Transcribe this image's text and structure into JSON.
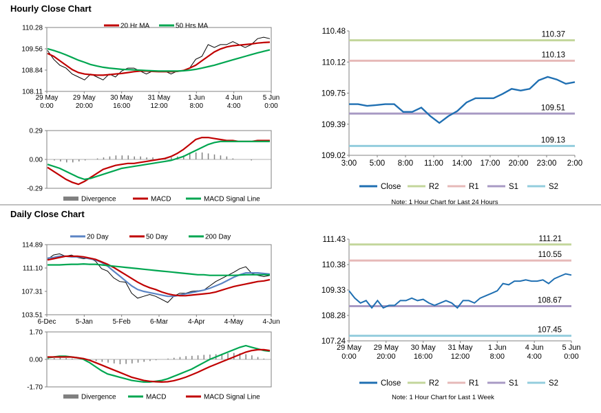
{
  "sections": {
    "hourly_title": "Hourly Close Chart",
    "daily_title": "Daily Close Chart"
  },
  "colors": {
    "price": "#000000",
    "red": "#c00000",
    "green": "#00a650",
    "blue": "#5b84c4",
    "close": "#1f6fb2",
    "R2": "#c3d69b",
    "R1": "#e6b9b8",
    "S1": "#a89ac4",
    "S2": "#93cddd",
    "divergence": "#808080",
    "axis": "#808080"
  },
  "chart_data": [
    {
      "id": "hourly-price",
      "type": "line",
      "legend": [
        "20 Hr MA",
        "50 Hrs MA"
      ],
      "legend_placement": "top",
      "y_ticks": [
        "110.28",
        "109.56",
        "108.84",
        "108.11"
      ],
      "ylim": [
        108.11,
        110.28
      ],
      "x_ticks": [
        [
          "29 May",
          "0:00"
        ],
        [
          "29 May",
          "20:00"
        ],
        [
          "30 May",
          "16:00"
        ],
        [
          "31 May",
          "12:00"
        ],
        [
          "1 Jun",
          "8:00"
        ],
        [
          "4 Jun",
          "4:00"
        ],
        [
          "5 Jun",
          "0:00"
        ]
      ],
      "series": [
        {
          "name": "Price",
          "values": [
            109.5,
            109.2,
            109.0,
            108.9,
            108.7,
            108.6,
            108.5,
            108.7,
            108.6,
            108.5,
            108.7,
            108.6,
            108.8,
            108.9,
            108.9,
            108.8,
            108.7,
            108.8,
            108.8,
            108.8,
            108.7,
            108.8,
            108.8,
            108.9,
            109.2,
            109.3,
            109.7,
            109.6,
            109.7,
            109.7,
            109.8,
            109.7,
            109.6,
            109.7,
            109.9,
            109.95,
            109.9
          ]
        },
        {
          "name": "20 Hr MA",
          "values": [
            109.4,
            109.3,
            109.15,
            109.0,
            108.85,
            108.75,
            108.7,
            108.68,
            108.66,
            108.66,
            108.68,
            108.7,
            108.72,
            108.75,
            108.78,
            108.8,
            108.8,
            108.79,
            108.78,
            108.78,
            108.78,
            108.79,
            108.82,
            108.9,
            109.0,
            109.15,
            109.3,
            109.45,
            109.55,
            109.62,
            109.66,
            109.68,
            109.7,
            109.72,
            109.75,
            109.77,
            109.78
          ]
        },
        {
          "name": "50 Hrs MA",
          "values": [
            109.56,
            109.5,
            109.43,
            109.35,
            109.26,
            109.17,
            109.1,
            109.02,
            108.97,
            108.93,
            108.9,
            108.88,
            108.86,
            108.85,
            108.84,
            108.83,
            108.82,
            108.81,
            108.8,
            108.8,
            108.8,
            108.8,
            108.81,
            108.83,
            108.86,
            108.9,
            108.95,
            109.0,
            109.06,
            109.12,
            109.18,
            109.24,
            109.3,
            109.36,
            109.42,
            109.47,
            109.52
          ]
        }
      ]
    },
    {
      "id": "hourly-macd",
      "type": "line",
      "legend": [
        "Divergence",
        "MACD",
        "MACD Signal Line"
      ],
      "legend_placement": "bottom",
      "y_ticks": [
        "0.29",
        "0.00",
        "-0.29"
      ],
      "ylim": [
        -0.29,
        0.29
      ],
      "series": [
        {
          "name": "Divergence",
          "values": [
            0.0,
            -0.01,
            -0.02,
            -0.03,
            -0.03,
            -0.02,
            -0.01,
            0.0,
            0.01,
            0.02,
            0.03,
            0.04,
            0.04,
            0.04,
            0.03,
            0.03,
            0.02,
            0.02,
            0.01,
            0.01,
            0.02,
            0.03,
            0.04,
            0.06,
            0.07,
            0.07,
            0.06,
            0.05,
            0.04,
            0.03,
            0.01,
            0.0,
            0.0,
            -0.01,
            0.0,
            0.0,
            0.0
          ]
        },
        {
          "name": "MACD",
          "values": [
            -0.08,
            -0.12,
            -0.16,
            -0.2,
            -0.23,
            -0.25,
            -0.22,
            -0.18,
            -0.14,
            -0.1,
            -0.08,
            -0.06,
            -0.05,
            -0.04,
            -0.04,
            -0.03,
            -0.02,
            -0.01,
            0.0,
            0.01,
            0.03,
            0.06,
            0.1,
            0.15,
            0.2,
            0.22,
            0.22,
            0.21,
            0.2,
            0.19,
            0.19,
            0.18,
            0.18,
            0.18,
            0.19,
            0.19,
            0.19
          ]
        },
        {
          "name": "MACD Signal Line",
          "values": [
            -0.05,
            -0.07,
            -0.09,
            -0.12,
            -0.15,
            -0.18,
            -0.2,
            -0.19,
            -0.17,
            -0.15,
            -0.13,
            -0.11,
            -0.09,
            -0.08,
            -0.07,
            -0.06,
            -0.05,
            -0.04,
            -0.03,
            -0.02,
            -0.01,
            0.01,
            0.03,
            0.06,
            0.09,
            0.12,
            0.15,
            0.17,
            0.18,
            0.18,
            0.18,
            0.18,
            0.18,
            0.18,
            0.18,
            0.18,
            0.18
          ]
        }
      ]
    },
    {
      "id": "hourly-close",
      "type": "line",
      "legend": [
        "Close",
        "R2",
        "R1",
        "S1",
        "S2"
      ],
      "legend_placement": "bottom",
      "y_ticks": [
        "110.48",
        "110.12",
        "109.75",
        "109.39",
        "109.02"
      ],
      "ylim": [
        109.02,
        110.48
      ],
      "x_ticks": [
        "3:00",
        "5:00",
        "8:00",
        "11:00",
        "14:00",
        "17:00",
        "20:00",
        "23:00",
        "2:00"
      ],
      "levels": [
        {
          "name": "R2",
          "value": 110.37,
          "label": "110.37"
        },
        {
          "name": "R1",
          "value": 110.13,
          "label": "110.13"
        },
        {
          "name": "S1",
          "value": 109.51,
          "label": "109.51"
        },
        {
          "name": "S2",
          "value": 109.13,
          "label": "109.13"
        }
      ],
      "series": [
        {
          "name": "Close",
          "values": [
            109.62,
            109.62,
            109.6,
            109.61,
            109.62,
            109.62,
            109.53,
            109.53,
            109.58,
            109.48,
            109.4,
            109.48,
            109.54,
            109.64,
            109.69,
            109.69,
            109.69,
            109.74,
            109.8,
            109.78,
            109.8,
            109.9,
            109.94,
            109.91,
            109.86,
            109.88
          ]
        }
      ],
      "note": "Note: 1 Hour Chart for Last 24 Hours"
    },
    {
      "id": "daily-price",
      "type": "line",
      "legend": [
        "20 Day",
        "50 Day",
        "200 Day"
      ],
      "legend_placement": "top",
      "y_ticks": [
        "114.89",
        "111.10",
        "107.31",
        "103.51"
      ],
      "ylim": [
        103.51,
        114.89
      ],
      "x_ticks": [
        "6-Dec",
        "5-Jan",
        "5-Feb",
        "6-Mar",
        "4-Apr",
        "4-May",
        "4-Jun"
      ],
      "series": [
        {
          "name": "Price",
          "values": [
            112.5,
            113.2,
            113.4,
            113.0,
            113.2,
            112.8,
            112.6,
            112.7,
            112.2,
            111.0,
            110.6,
            109.5,
            108.9,
            108.8,
            107.0,
            106.2,
            106.5,
            106.8,
            106.5,
            106.0,
            105.5,
            106.5,
            107.0,
            107.0,
            107.3,
            107.4,
            107.5,
            108.2,
            108.9,
            109.4,
            109.9,
            110.4,
            111.0,
            111.3,
            110.2,
            109.9,
            109.7,
            109.9
          ]
        },
        {
          "name": "20 Day",
          "values": [
            112.7,
            112.8,
            113.0,
            113.0,
            112.9,
            112.9,
            112.8,
            112.6,
            112.4,
            112.0,
            111.4,
            110.6,
            109.8,
            109.0,
            108.2,
            107.6,
            107.3,
            107.1,
            106.9,
            106.7,
            106.5,
            106.5,
            106.7,
            106.9,
            107.1,
            107.3,
            107.5,
            107.8,
            108.2,
            108.6,
            109.1,
            109.6,
            110.0,
            110.3,
            110.3,
            110.3,
            110.2,
            110.1
          ]
        },
        {
          "name": "50 Day",
          "values": [
            112.4,
            112.6,
            112.8,
            113.0,
            113.0,
            113.0,
            112.9,
            112.7,
            112.5,
            112.1,
            111.7,
            111.2,
            110.6,
            110.0,
            109.4,
            108.8,
            108.3,
            107.9,
            107.6,
            107.2,
            106.9,
            106.7,
            106.6,
            106.6,
            106.7,
            106.8,
            106.9,
            107.0,
            107.2,
            107.5,
            107.8,
            108.1,
            108.3,
            108.5,
            108.7,
            108.9,
            109.0,
            109.2
          ]
        },
        {
          "name": "200 Day",
          "values": [
            111.6,
            111.6,
            111.6,
            111.65,
            111.7,
            111.7,
            111.75,
            111.7,
            111.7,
            111.6,
            111.5,
            111.4,
            111.3,
            111.2,
            111.1,
            111.0,
            110.9,
            110.8,
            110.7,
            110.6,
            110.5,
            110.4,
            110.3,
            110.2,
            110.1,
            110.0,
            110.0,
            109.9,
            109.9,
            109.9,
            109.9,
            109.9,
            109.95,
            110.0,
            110.0,
            110.0,
            110.0,
            110.0
          ]
        }
      ]
    },
    {
      "id": "daily-macd",
      "type": "line",
      "legend": [
        "Divergence",
        "MACD",
        "MACD Signal Line"
      ],
      "legend_placement": "bottom",
      "y_ticks": [
        "1.70",
        "0.00",
        "-1.70"
      ],
      "ylim": [
        -1.7,
        1.7
      ],
      "series": [
        {
          "name": "Divergence",
          "values": [
            0.05,
            0.08,
            0.1,
            0.08,
            0.05,
            0.02,
            0.0,
            -0.05,
            -0.1,
            -0.15,
            -0.2,
            -0.25,
            -0.3,
            -0.28,
            -0.25,
            -0.2,
            -0.15,
            -0.1,
            -0.05,
            0.0,
            0.05,
            0.1,
            0.15,
            0.2,
            0.22,
            0.25,
            0.28,
            0.3,
            0.32,
            0.35,
            0.38,
            0.4,
            0.38,
            0.32,
            0.25,
            0.15,
            0.05,
            0.0
          ]
        },
        {
          "name": "MACD",
          "values": [
            0.1,
            0.15,
            0.2,
            0.2,
            0.15,
            0.1,
            0.0,
            -0.2,
            -0.45,
            -0.7,
            -0.9,
            -1.0,
            -1.1,
            -1.2,
            -1.3,
            -1.35,
            -1.4,
            -1.4,
            -1.35,
            -1.3,
            -1.2,
            -1.05,
            -0.9,
            -0.75,
            -0.6,
            -0.4,
            -0.2,
            0.0,
            0.15,
            0.3,
            0.45,
            0.6,
            0.75,
            0.85,
            0.75,
            0.65,
            0.55,
            0.5
          ]
        },
        {
          "name": "MACD Signal Line",
          "values": [
            0.15,
            0.15,
            0.15,
            0.15,
            0.15,
            0.1,
            0.05,
            -0.05,
            -0.2,
            -0.35,
            -0.5,
            -0.65,
            -0.8,
            -0.95,
            -1.1,
            -1.2,
            -1.3,
            -1.35,
            -1.38,
            -1.4,
            -1.38,
            -1.32,
            -1.22,
            -1.1,
            -0.95,
            -0.8,
            -0.62,
            -0.45,
            -0.3,
            -0.15,
            0.0,
            0.15,
            0.3,
            0.45,
            0.55,
            0.6,
            0.6,
            0.55
          ]
        }
      ]
    },
    {
      "id": "daily-close",
      "type": "line",
      "legend": [
        "Close",
        "R2",
        "R1",
        "S1",
        "S2"
      ],
      "legend_placement": "bottom",
      "y_ticks": [
        "111.43",
        "110.38",
        "109.33",
        "108.28",
        "107.24"
      ],
      "ylim": [
        107.24,
        111.43
      ],
      "x_ticks": [
        [
          "29 May",
          "0:00"
        ],
        [
          "29 May",
          "20:00"
        ],
        [
          "30 May",
          "16:00"
        ],
        [
          "31 May",
          "12:00"
        ],
        [
          "1 Jun",
          "8:00"
        ],
        [
          "4 Jun",
          "4:00"
        ],
        [
          "5 Jun",
          "0:00"
        ]
      ],
      "levels": [
        {
          "name": "R2",
          "value": 111.21,
          "label": "111.21"
        },
        {
          "name": "R1",
          "value": 110.55,
          "label": "110.55"
        },
        {
          "name": "S1",
          "value": 108.67,
          "label": "108.67"
        },
        {
          "name": "S2",
          "value": 107.45,
          "label": "107.45"
        }
      ],
      "series": [
        {
          "name": "Close",
          "values": [
            109.3,
            109.0,
            108.8,
            108.9,
            108.6,
            108.9,
            108.6,
            108.7,
            108.7,
            108.9,
            108.9,
            109.0,
            108.9,
            108.95,
            108.8,
            108.7,
            108.8,
            108.9,
            108.8,
            108.6,
            108.9,
            108.9,
            108.8,
            109.0,
            109.1,
            109.2,
            109.3,
            109.6,
            109.55,
            109.7,
            109.7,
            109.75,
            109.7,
            109.7,
            109.75,
            109.6,
            109.8,
            109.9,
            110.0,
            109.95
          ]
        }
      ],
      "note": "Note: 1 Hour Chart for Last 1 Week"
    }
  ]
}
